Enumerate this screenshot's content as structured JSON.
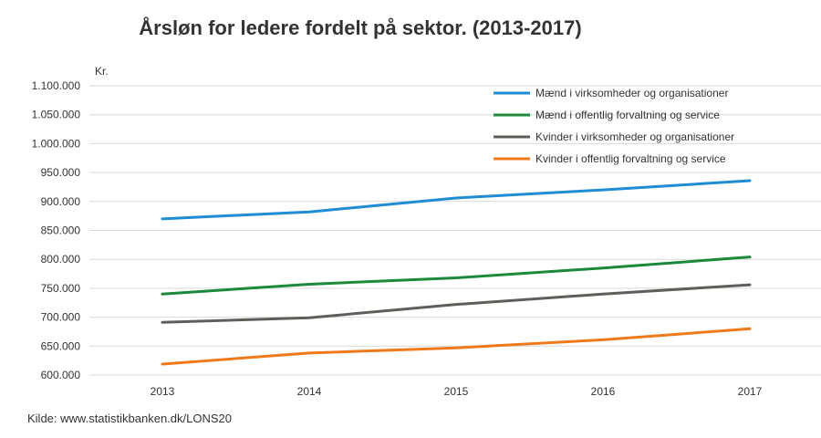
{
  "chart_data": {
    "type": "line",
    "title": "Årsløn for ledere fordelt på sektor. (2013-2017)",
    "ylabel": "Kr.",
    "xlabel": "",
    "x": [
      "2013",
      "2014",
      "2015",
      "2016",
      "2017"
    ],
    "ylim": [
      600000,
      1100000
    ],
    "yticks": [
      600000,
      650000,
      700000,
      750000,
      800000,
      850000,
      900000,
      950000,
      1000000,
      1050000,
      1100000
    ],
    "ytick_labels": [
      "600.000",
      "650.000",
      "700.000",
      "750.000",
      "800.000",
      "850.000",
      "900.000",
      "950.000",
      "1.000.000",
      "1.050.000",
      "1.100.000"
    ],
    "grid": true,
    "legend_position": "top-right",
    "series": [
      {
        "name": "Mænd  i virksomheder og organisationer",
        "color": "#1f8dd6",
        "values": [
          870000,
          882000,
          906000,
          920000,
          936000
        ]
      },
      {
        "name": "Mænd i offentlig forvaltning og service",
        "color": "#1a8a3a",
        "values": [
          740000,
          757000,
          768000,
          785000,
          804000
        ]
      },
      {
        "name": "Kvinder  i virksomheder og organisationer",
        "color": "#5f5f5a",
        "values": [
          691000,
          699000,
          722000,
          740000,
          756000
        ]
      },
      {
        "name": "Kvinder i offentlig forvaltning og service",
        "color": "#f07a1a",
        "values": [
          619000,
          638000,
          647000,
          661000,
          680000
        ]
      }
    ]
  },
  "source": "Kilde: www.statistikbanken.dk/LONS20"
}
